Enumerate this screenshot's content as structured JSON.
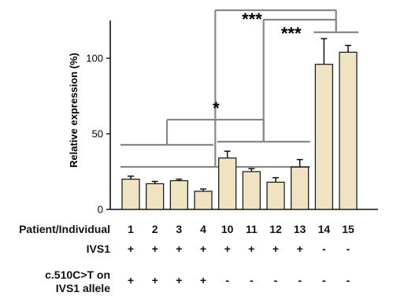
{
  "chart_data": {
    "type": "bar",
    "ylabel": "Relative expression (%)",
    "yticks": [
      0,
      50,
      100
    ],
    "ylim": [
      0,
      125
    ],
    "bar_color": "#efe3c2",
    "bar_edge": "#111111",
    "bracket_color": "#888888",
    "categories": [
      "1",
      "2",
      "3",
      "4",
      "10",
      "11",
      "12",
      "13",
      "14",
      "15"
    ],
    "values": [
      20,
      17,
      19,
      12,
      34,
      25,
      18,
      28,
      96,
      104
    ],
    "errors": [
      2,
      1.5,
      1,
      1.5,
      4.5,
      2,
      3,
      5,
      17,
      4.5
    ],
    "significance": [
      {
        "label": "***",
        "from": [
          "1",
          "2",
          "3",
          "4",
          "10",
          "11",
          "12",
          "13"
        ],
        "to": [
          "14",
          "15"
        ]
      },
      {
        "label": "***",
        "from": [
          "10",
          "11",
          "12",
          "13"
        ],
        "to": [
          "14",
          "15"
        ]
      },
      {
        "label": "*",
        "from": [
          "1",
          "2",
          "3",
          "4"
        ],
        "to": [
          "10",
          "11",
          "12",
          "13"
        ]
      }
    ]
  },
  "table": {
    "header_label": "Patient/Individual",
    "rows": [
      {
        "label": "IVS1",
        "values": [
          "+",
          "+",
          "+",
          "+",
          "+",
          "+",
          "+",
          "+",
          "-",
          "-"
        ]
      },
      {
        "label_line1": "c.510C>T on",
        "label_line2": "IVS1 allele",
        "values": [
          "+",
          "+",
          "+",
          "+",
          "-",
          "-",
          "-",
          "-",
          "-",
          "-"
        ]
      }
    ]
  }
}
